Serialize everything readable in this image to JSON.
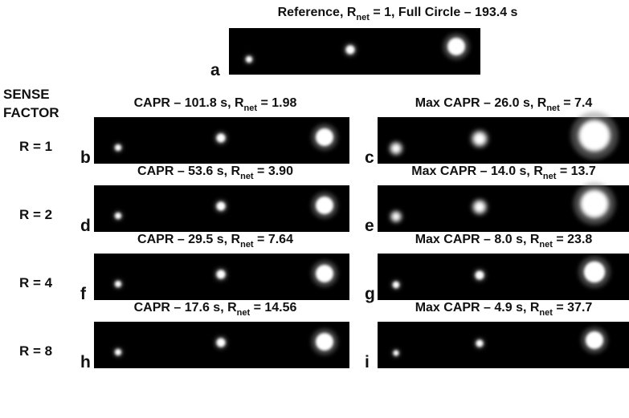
{
  "reference": {
    "title": {
      "before": "Reference, R",
      "sub": "net",
      "after": " = 1, Full Circle – 193.4 s"
    },
    "label": "a"
  },
  "sense_factor_heading": [
    "SENSE",
    "FACTOR"
  ],
  "rows": [
    {
      "r_label": "R = 1",
      "left": {
        "title": {
          "before": "CAPR – 101.8 s, R",
          "sub": "net",
          "after": " = 1.98"
        },
        "label": "b"
      },
      "right": {
        "title": {
          "before": "Max CAPR – 26.0 s, R",
          "sub": "net",
          "after": " = 7.4"
        },
        "label": "c"
      }
    },
    {
      "r_label": "R = 2",
      "left": {
        "title": {
          "before": "CAPR – 53.6 s, R",
          "sub": "net",
          "after": " = 3.90"
        },
        "label": "d"
      },
      "right": {
        "title": {
          "before": "Max CAPR – 14.0 s, R",
          "sub": "net",
          "after": " = 13.7"
        },
        "label": "e"
      }
    },
    {
      "r_label": "R = 4",
      "left": {
        "title": {
          "before": "CAPR – 29.5 s, R",
          "sub": "net",
          "after": " = 7.64"
        },
        "label": "f"
      },
      "right": {
        "title": {
          "before": "Max CAPR – 8.0 s, R",
          "sub": "net",
          "after": " = 23.8"
        },
        "label": "g"
      }
    },
    {
      "r_label": "R = 8",
      "left": {
        "title": {
          "before": "CAPR – 17.6 s, R",
          "sub": "net",
          "after": " = 14.56"
        },
        "label": "h"
      },
      "right": {
        "title": {
          "before": "Max CAPR – 4.9 s, R",
          "sub": "net",
          "after": " = 37.7"
        },
        "label": "i"
      }
    }
  ]
}
